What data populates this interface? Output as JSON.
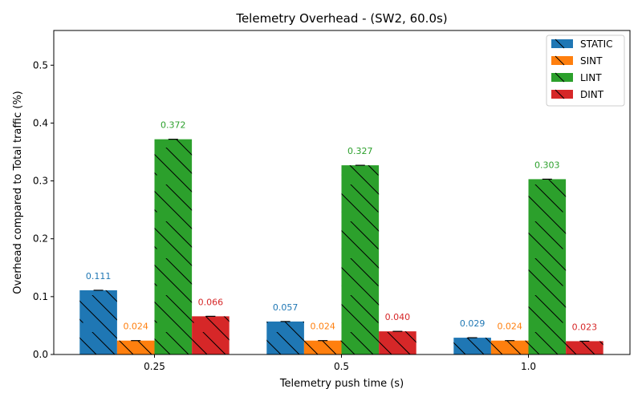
{
  "chart_data": {
    "type": "bar",
    "title": "Telemetry Overhead - (SW2, 60.0s)",
    "xlabel": "Telemetry push time (s)",
    "ylabel": "Overhead compared to Total traffic (%)",
    "categories": [
      "0.25",
      "0.5",
      "1.0"
    ],
    "ylim": [
      0,
      0.56
    ],
    "yticks": [
      0.0,
      0.1,
      0.2,
      0.3,
      0.4,
      0.5
    ],
    "ytick_labels": [
      "0.0",
      "0.1",
      "0.2",
      "0.3",
      "0.4",
      "0.5"
    ],
    "grid": false,
    "legend_position": "top-right",
    "series": [
      {
        "name": "STATIC",
        "color": "#1f77b4",
        "values": [
          0.111,
          0.057,
          0.029
        ],
        "labels": [
          "0.111",
          "0.057",
          "0.029"
        ]
      },
      {
        "name": "SINT",
        "color": "#ff7f0e",
        "values": [
          0.024,
          0.024,
          0.024
        ],
        "labels": [
          "0.024",
          "0.024",
          "0.024"
        ]
      },
      {
        "name": "LINT",
        "color": "#2ca02c",
        "values": [
          0.372,
          0.327,
          0.303
        ],
        "labels": [
          "0.372",
          "0.327",
          "0.303"
        ]
      },
      {
        "name": "DINT",
        "color": "#d62728",
        "values": [
          0.066,
          0.04,
          0.023
        ],
        "labels": [
          "0.066",
          "0.040",
          "0.023"
        ]
      }
    ]
  }
}
